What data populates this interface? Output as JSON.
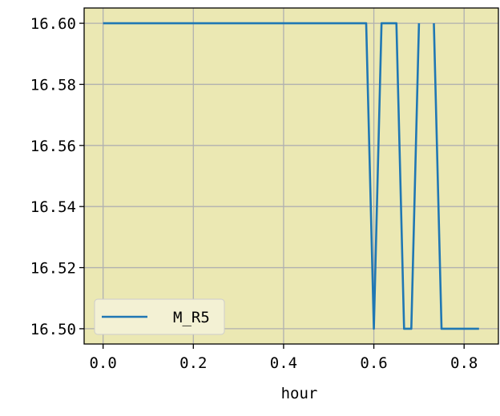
{
  "chart_data": {
    "type": "line",
    "title": "",
    "xlabel": "hour",
    "ylabel": "",
    "xlim": [
      -0.042,
      0.876
    ],
    "ylim": [
      16.495,
      16.605
    ],
    "x_ticks": [
      0.0,
      0.2,
      0.4,
      0.6,
      0.8
    ],
    "x_tick_labels": [
      "0.0",
      "0.2",
      "0.4",
      "0.6",
      "0.8"
    ],
    "y_ticks": [
      16.5,
      16.52,
      16.54,
      16.56,
      16.58,
      16.6
    ],
    "y_tick_labels": [
      "16.50",
      "16.52",
      "16.54",
      "16.56",
      "16.58",
      "16.60"
    ],
    "grid": true,
    "legend_position": "lower-left",
    "plot_background": "#ebe8b3",
    "grid_color": "#b0b0b0",
    "series": [
      {
        "name": "M_R5",
        "color": "#1f77b4",
        "x": [
          0.0,
          0.583,
          0.6,
          0.617,
          0.65,
          0.667,
          0.683,
          0.7,
          0.717,
          0.733,
          0.75,
          0.833
        ],
        "y": [
          16.6,
          16.6,
          16.5,
          16.6,
          16.6,
          16.5,
          16.5,
          16.6,
          null,
          16.6,
          16.5,
          16.5
        ]
      }
    ]
  }
}
